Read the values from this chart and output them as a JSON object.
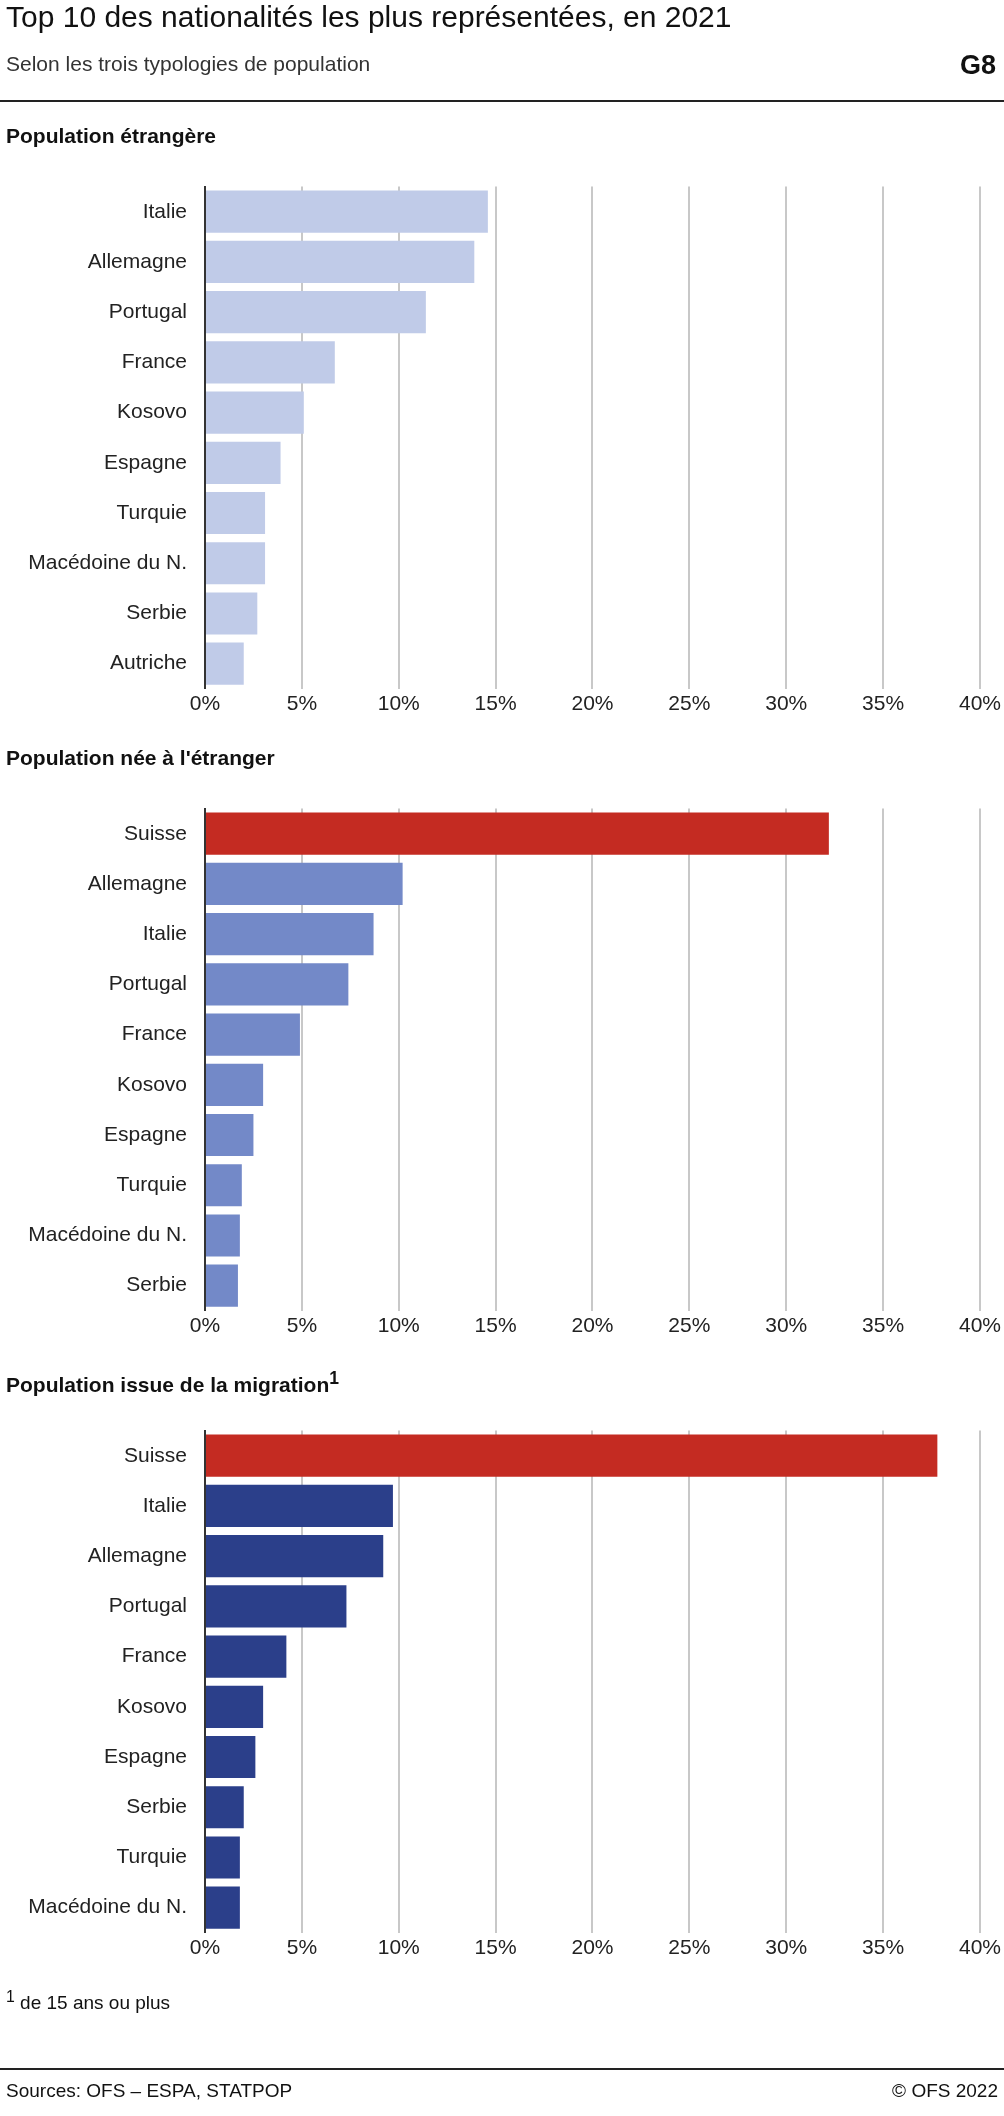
{
  "chart_data": [
    {
      "type": "other",
      "title": "Top 10 des nationalités les plus représentées, en 2021",
      "subtitle": "Selon les trois typologies de population",
      "annotations": [
        "G8"
      ]
    },
    {
      "type": "bar",
      "orientation": "horizontal",
      "title": "Population étrangère",
      "categories": [
        "Italie",
        "Allemagne",
        "Portugal",
        "France",
        "Kosovo",
        "Espagne",
        "Turquie",
        "Macédoine du N.",
        "Serbie",
        "Autriche"
      ],
      "values": [
        14.6,
        13.9,
        11.4,
        6.7,
        5.1,
        3.9,
        3.1,
        3.1,
        2.7,
        2.0
      ],
      "colors": [
        "#c0cbe8",
        "#c0cbe8",
        "#c0cbe8",
        "#c0cbe8",
        "#c0cbe8",
        "#c0cbe8",
        "#c0cbe8",
        "#c0cbe8",
        "#c0cbe8",
        "#c0cbe8"
      ],
      "xlim": [
        0,
        40
      ],
      "xticks": [
        {
          "value": 0,
          "label": "0%"
        },
        {
          "value": 5,
          "label": "5%"
        },
        {
          "value": 10,
          "label": "10%"
        },
        {
          "value": 15,
          "label": "15%"
        },
        {
          "value": 20,
          "label": "20%"
        },
        {
          "value": 25,
          "label": "25%"
        },
        {
          "value": 30,
          "label": "30%"
        },
        {
          "value": 35,
          "label": "35%"
        },
        {
          "value": 40,
          "label": "40%"
        }
      ],
      "grid": "x",
      "legend": false
    },
    {
      "type": "bar",
      "orientation": "horizontal",
      "title": "Population née à l'étranger",
      "categories": [
        "Suisse",
        "Allemagne",
        "Italie",
        "Portugal",
        "France",
        "Kosovo",
        "Espagne",
        "Turquie",
        "Macédoine du N.",
        "Serbie"
      ],
      "values": [
        32.2,
        10.2,
        8.7,
        7.4,
        4.9,
        3.0,
        2.5,
        1.9,
        1.8,
        1.7
      ],
      "colors": [
        "#c42b22",
        "#7389c8",
        "#7389c8",
        "#7389c8",
        "#7389c8",
        "#7389c8",
        "#7389c8",
        "#7389c8",
        "#7389c8",
        "#7389c8"
      ],
      "xlim": [
        0,
        40
      ],
      "xticks": [
        {
          "value": 0,
          "label": "0%"
        },
        {
          "value": 5,
          "label": "5%"
        },
        {
          "value": 10,
          "label": "10%"
        },
        {
          "value": 15,
          "label": "15%"
        },
        {
          "value": 20,
          "label": "20%"
        },
        {
          "value": 25,
          "label": "25%"
        },
        {
          "value": 30,
          "label": "30%"
        },
        {
          "value": 35,
          "label": "35%"
        },
        {
          "value": 40,
          "label": "40%"
        }
      ],
      "grid": "x",
      "legend": false
    },
    {
      "type": "bar",
      "orientation": "horizontal",
      "title": "Population issue de la migration$^{1}$",
      "categories": [
        "Suisse",
        "Italie",
        "Allemagne",
        "Portugal",
        "France",
        "Kosovo",
        "Espagne",
        "Serbie",
        "Turquie",
        "Macédoine du N."
      ],
      "values": [
        37.8,
        9.7,
        9.2,
        7.3,
        4.2,
        3.0,
        2.6,
        2.0,
        1.8,
        1.8
      ],
      "colors": [
        "#c42b22",
        "#2b3f8a",
        "#2b3f8a",
        "#2b3f8a",
        "#2b3f8a",
        "#2b3f8a",
        "#2b3f8a",
        "#2b3f8a",
        "#2b3f8a",
        "#2b3f8a"
      ],
      "xlim": [
        0,
        40
      ],
      "xticks": [
        {
          "value": 0,
          "label": "0%"
        },
        {
          "value": 5,
          "label": "5%"
        },
        {
          "value": 10,
          "label": "10%"
        },
        {
          "value": 15,
          "label": "15%"
        },
        {
          "value": 20,
          "label": "20%"
        },
        {
          "value": 25,
          "label": "25%"
        },
        {
          "value": 30,
          "label": "30%"
        },
        {
          "value": 35,
          "label": "35%"
        },
        {
          "value": 40,
          "label": "40%"
        }
      ],
      "grid": "x",
      "legend": false,
      "annotations": [
        "$^{1}$ de 15 ans ou plus",
        "Sources: OFS – ESPA, STATPOP",
        "© OFS 2022"
      ]
    }
  ]
}
